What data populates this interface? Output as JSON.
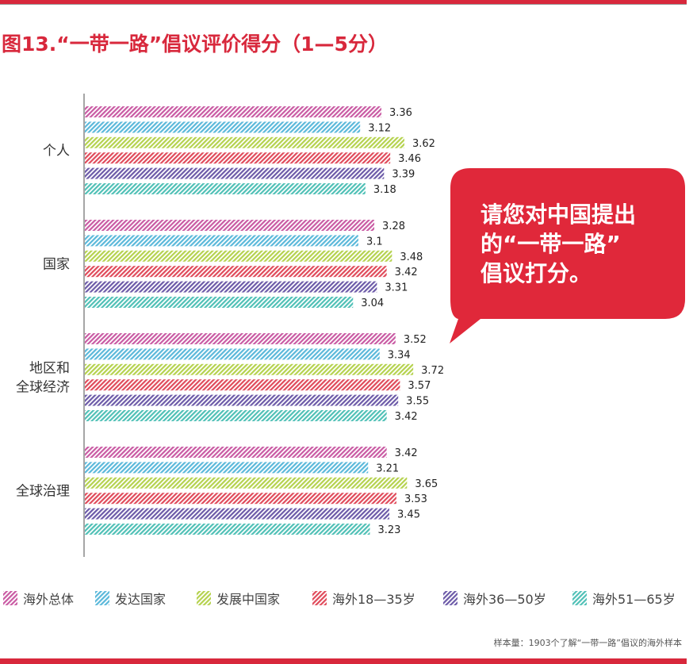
{
  "title": "图13.“一带一路”倡议评价得分（1—5分）",
  "callout": {
    "lines": [
      "请您对中国提出",
      "的“一带一路”",
      "倡议打分。"
    ],
    "color": "#e0283a"
  },
  "note": "样本量：1903个了解“一带一路”倡议的海外样本",
  "chart_data": {
    "type": "bar",
    "orientation": "horizontal",
    "title": "图13.“一带一路”倡议评价得分（1—5分）",
    "categories": [
      "个人",
      "国家",
      "地区和\n全球经济",
      "全球治理"
    ],
    "xlim": [
      0,
      5
    ],
    "grid": false,
    "legend_position": "bottom",
    "series": [
      {
        "name": "海外总体",
        "color": "#c95aa3",
        "values": [
          3.36,
          3.28,
          3.52,
          3.42
        ]
      },
      {
        "name": "发达国家",
        "color": "#5ab8da",
        "values": [
          3.12,
          3.1,
          3.34,
          3.21
        ]
      },
      {
        "name": "发展中国家",
        "color": "#b5d24e",
        "values": [
          3.62,
          3.48,
          3.72,
          3.65
        ]
      },
      {
        "name": "海外18—35岁",
        "color": "#e04a5a",
        "values": [
          3.46,
          3.42,
          3.57,
          3.53
        ]
      },
      {
        "name": "海外36—50岁",
        "color": "#6c5aa8",
        "values": [
          3.39,
          3.31,
          3.55,
          3.45
        ]
      },
      {
        "name": "海外51—65岁",
        "color": "#4fc0b6",
        "values": [
          3.18,
          3.04,
          3.42,
          3.23
        ]
      }
    ]
  }
}
